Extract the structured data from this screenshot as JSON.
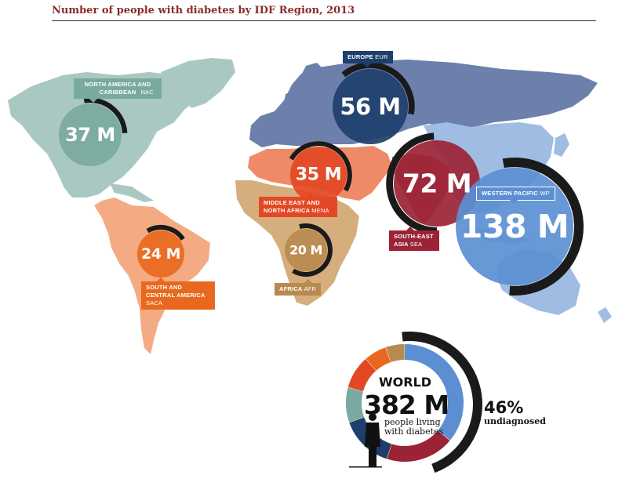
{
  "title": "Number of people with diabetes by IDF Region, 2013",
  "colors": {
    "nac": "#7aa9a0",
    "eur": "#1e3f6b",
    "mena": "#e34824",
    "saca": "#e8691e",
    "afr": "#b88a4e",
    "sea": "#9b2335",
    "wp": "#5b8fd2",
    "undiagnosed": "#1a1a1a"
  },
  "regions": [
    {
      "id": "nac",
      "name": "NORTH AMERICA AND CARIBBEAN",
      "abbr": "NAC",
      "value": "37 M",
      "undiagnosed_fraction": 0.27
    },
    {
      "id": "eur",
      "name": "EUROPE",
      "abbr": "EUR",
      "value": "56 M",
      "undiagnosed_fraction": 0.39
    },
    {
      "id": "mena",
      "name": "MIDDLE EAST AND NORTH AFRICA",
      "abbr": "MENA",
      "value": "35 M",
      "undiagnosed_fraction": 0.5
    },
    {
      "id": "saca",
      "name": "SOUTH AND CENTRAL AMERICA",
      "abbr": "SACA",
      "value": "24 M",
      "undiagnosed_fraction": 0.24
    },
    {
      "id": "afr",
      "name": "AFRICA",
      "abbr": "AFR",
      "value": "20 M",
      "undiagnosed_fraction": 0.63
    },
    {
      "id": "sea",
      "name": "SOUTH-EAST ASIA",
      "abbr": "SEA",
      "value": "72 M",
      "undiagnosed_fraction": 0.49
    },
    {
      "id": "wp",
      "name": "WESTERN PACIFIC",
      "abbr": "WP",
      "value": "138 M",
      "undiagnosed_fraction": 0.54
    }
  ],
  "world": {
    "label": "WORLD",
    "value": "382 M",
    "caption": "people living with diabetes",
    "undiagnosed_percent": "46%",
    "undiagnosed_label": "undiagnosed",
    "shares": [
      {
        "region": "wp",
        "millions": 138
      },
      {
        "region": "sea",
        "millions": 72
      },
      {
        "region": "eur",
        "millions": 56
      },
      {
        "region": "nac",
        "millions": 37
      },
      {
        "region": "mena",
        "millions": 35
      },
      {
        "region": "saca",
        "millions": 24
      },
      {
        "region": "afr",
        "millions": 20
      }
    ]
  }
}
